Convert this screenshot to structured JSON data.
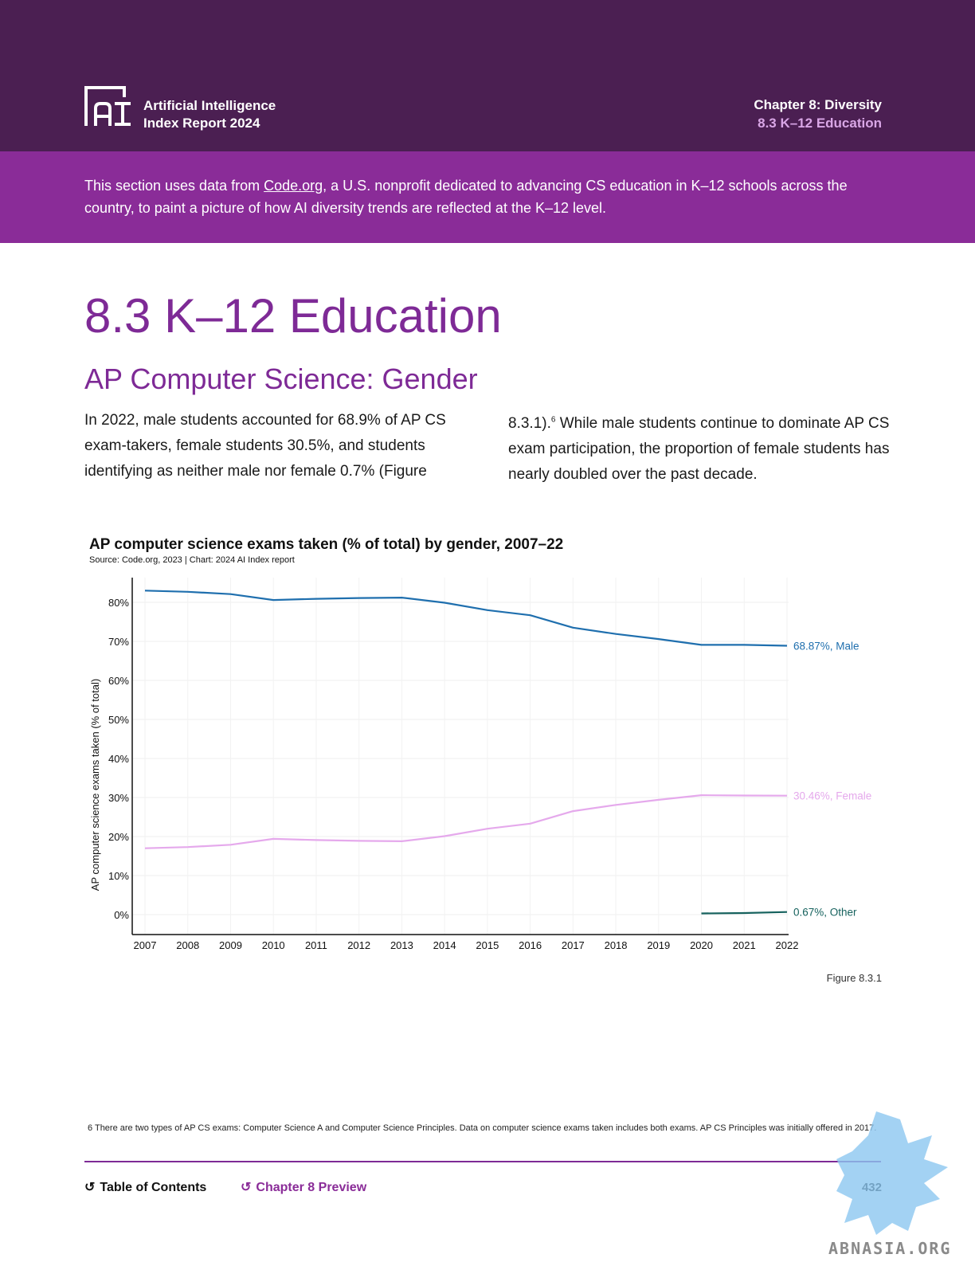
{
  "header": {
    "brand_line1": "Artificial Intelligence",
    "brand_line2": "Index Report 2024",
    "chapter": "Chapter 8: Diversity",
    "section": "8.3 K–12 Education"
  },
  "intro": {
    "before_link": "This section uses data from ",
    "link": "Code.org",
    "after_link": ", a U.S. nonprofit dedicated to advancing CS education in K–12 schools across the country, to paint a picture of how AI diversity trends are reflected at the K–12 level."
  },
  "title": "8.3 K–12 Education",
  "subtitle": "AP Computer Science: Gender",
  "body": {
    "col1": "In 2022, male students accounted for 68.9% of AP CS exam-takers, female students 30.5%, and students identifying as neither male nor female 0.7% (Figure",
    "col2_start": "8.3.1).",
    "footnote_ref": "6",
    "col2_rest": " While male students continue to dominate AP CS exam participation, the proportion of female students has nearly doubled over the past decade."
  },
  "figure_label": "Figure 8.3.1",
  "footnote": "6 There are two types of AP CS exams: Computer Science A and Computer Science Principles. Data on computer science exams taken includes both exams. AP CS Principles was initially offered in 2017.",
  "nav": {
    "toc": "Table of Contents",
    "chapter_preview": "Chapter 8 Preview",
    "page": "432"
  },
  "watermark": "ABNASIA.ORG",
  "chart_data": {
    "type": "line",
    "title": "AP computer science exams taken (% of total) by gender, 2007–22",
    "source": "Source: Code.org, 2023 | Chart: 2024 AI Index report",
    "xlabel": "",
    "ylabel": "AP computer science exams taken (% of total)",
    "ylim": [
      0,
      85
    ],
    "yticks": [
      0,
      10,
      20,
      30,
      40,
      50,
      60,
      70,
      80
    ],
    "ytick_labels": [
      "0%",
      "10%",
      "20%",
      "30%",
      "40%",
      "50%",
      "60%",
      "70%",
      "80%"
    ],
    "x": [
      2007,
      2008,
      2009,
      2010,
      2011,
      2012,
      2013,
      2014,
      2015,
      2016,
      2017,
      2018,
      2019,
      2020,
      2021,
      2022
    ],
    "grid": true,
    "series": [
      {
        "name": "Male",
        "end_label": "68.87%, Male",
        "color": "#1f6fae",
        "values": [
          83.0,
          82.7,
          82.1,
          80.6,
          80.9,
          81.1,
          81.2,
          79.9,
          78.0,
          76.7,
          73.5,
          71.9,
          70.6,
          69.1,
          69.1,
          68.87
        ]
      },
      {
        "name": "Female",
        "end_label": "30.46%, Female",
        "color": "#e5a9ec",
        "values": [
          17.0,
          17.3,
          17.9,
          19.4,
          19.1,
          18.9,
          18.8,
          20.1,
          22.0,
          23.3,
          26.5,
          28.1,
          29.4,
          30.6,
          30.5,
          30.46
        ]
      },
      {
        "name": "Other",
        "end_label": "0.67%, Other",
        "color": "#16625e",
        "values": [
          null,
          null,
          null,
          null,
          null,
          null,
          null,
          null,
          null,
          null,
          null,
          null,
          null,
          0.3,
          0.4,
          0.67
        ]
      }
    ]
  }
}
